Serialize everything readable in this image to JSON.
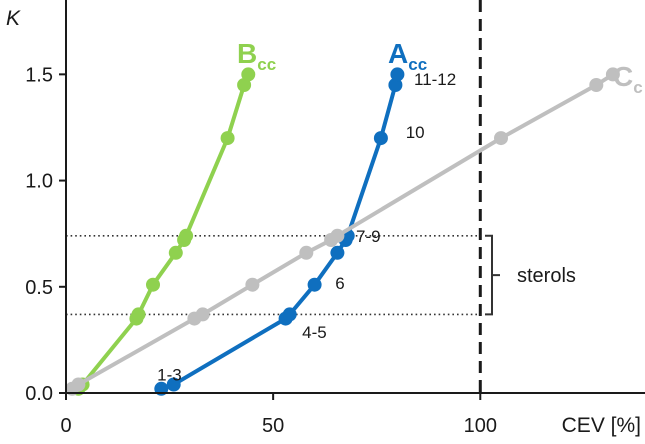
{
  "chart_data": {
    "type": "line",
    "xlabel": "CEV [%]",
    "ylabel": "K",
    "xlim": [
      0,
      140
    ],
    "ylim": [
      0,
      1.85
    ],
    "x_ticks": [
      0,
      50,
      100
    ],
    "x_tick_labels": [
      "0",
      "50",
      "100"
    ],
    "y_ticks": [
      0,
      0.5,
      1.0,
      1.5
    ],
    "y_tick_labels": [
      "0.0",
      "0.5",
      "1.0",
      "1.5"
    ],
    "grid": false,
    "legend": "none",
    "colors": {
      "B": "#8fd14f",
      "A": "#0f6fbf",
      "C": "#bfbfbf",
      "axis": "#1a1a1a"
    },
    "series": [
      {
        "label_main": "B",
        "label_sub": "cc",
        "color": "#8fd14f",
        "points": [
          [
            3,
            0.02
          ],
          [
            4,
            0.04
          ],
          [
            17,
            0.35
          ],
          [
            17.5,
            0.37
          ],
          [
            21,
            0.51
          ],
          [
            26.5,
            0.66
          ],
          [
            28.5,
            0.72
          ],
          [
            29,
            0.74
          ],
          [
            39,
            1.2
          ],
          [
            43,
            1.45
          ],
          [
            44,
            1.5
          ]
        ]
      },
      {
        "label_main": "A",
        "label_sub": "cc",
        "color": "#0f6fbf",
        "points": [
          [
            23,
            0.02
          ],
          [
            26,
            0.04
          ],
          [
            53,
            0.35
          ],
          [
            54,
            0.37
          ],
          [
            60,
            0.51
          ],
          [
            65.5,
            0.66
          ],
          [
            67.5,
            0.72
          ],
          [
            68,
            0.74
          ],
          [
            76,
            1.2
          ],
          [
            79.5,
            1.45
          ],
          [
            80,
            1.5
          ]
        ]
      },
      {
        "label_main": "C",
        "label_sub": "c",
        "color": "#bfbfbf",
        "points": [
          [
            1.5,
            0.02
          ],
          [
            3,
            0.04
          ],
          [
            31,
            0.35
          ],
          [
            33,
            0.37
          ],
          [
            45,
            0.51
          ],
          [
            58,
            0.66
          ],
          [
            64,
            0.72
          ],
          [
            65.5,
            0.74
          ],
          [
            105,
            1.2
          ],
          [
            128,
            1.45
          ],
          [
            132,
            1.5
          ]
        ]
      }
    ],
    "reference_lines": [
      {
        "orientation": "vertical",
        "x": 100,
        "style": "dashed"
      },
      {
        "orientation": "horizontal",
        "y": 0.74,
        "style": "dotted"
      },
      {
        "orientation": "horizontal",
        "y": 0.37,
        "style": "dotted"
      }
    ],
    "bracket": {
      "y_range": [
        0.37,
        0.74
      ],
      "label": "sterols"
    },
    "annotations": [
      {
        "text": "1-3",
        "x": 22,
        "y": 0.06
      },
      {
        "text": "4-5",
        "x": 57,
        "y": 0.26
      },
      {
        "text": "6",
        "x": 65,
        "y": 0.49
      },
      {
        "text": "7-9",
        "x": 70,
        "y": 0.71
      },
      {
        "text": "10",
        "x": 82,
        "y": 1.2
      },
      {
        "text": "11-12",
        "x": 84,
        "y": 1.45
      }
    ]
  }
}
